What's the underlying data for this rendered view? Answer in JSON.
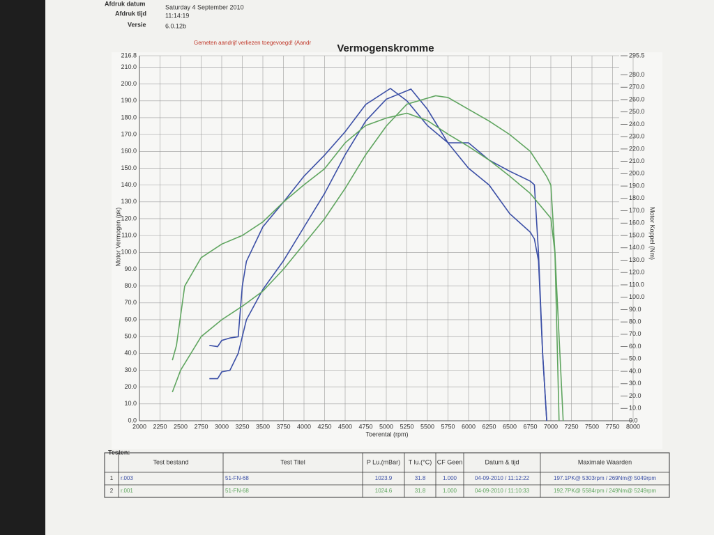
{
  "header": {
    "fields": [
      {
        "label": "Afdruk datum",
        "value": "Saturday 4 September 2010"
      },
      {
        "label": "Afdruk tijd",
        "value": "11:14:19"
      },
      {
        "label": "Versie",
        "value": "6.0.12b"
      }
    ]
  },
  "chart_data": {
    "type": "line",
    "title": "Vermogenskromme",
    "subtitle": "Gemeten aandrijf verliezen toegevoegd! (Aandr",
    "x_label": "Toerental (rpm)",
    "y_label": "Motor Vermogen (pk)",
    "y2_label": "Motor Koppel (Nm)",
    "xlim": [
      2000,
      8000
    ],
    "xticks": [
      2000,
      2250,
      2500,
      2750,
      3000,
      3250,
      3500,
      3750,
      4000,
      4250,
      4500,
      4750,
      5000,
      5250,
      5500,
      5750,
      6000,
      6250,
      6500,
      6750,
      7000,
      7250,
      7500,
      7750,
      8000
    ],
    "ylim": [
      0,
      216.8
    ],
    "yticks": [
      {
        "value": 0,
        "label": "0.0"
      },
      {
        "value": 10,
        "label": "10.0"
      },
      {
        "value": 20,
        "label": "20.0"
      },
      {
        "value": 30,
        "label": "30.0"
      },
      {
        "value": 40,
        "label": "40.0"
      },
      {
        "value": 50,
        "label": "50.0"
      },
      {
        "value": 60,
        "label": "60.0"
      },
      {
        "value": 70,
        "label": "70.0"
      },
      {
        "value": 80,
        "label": "80.0"
      },
      {
        "value": 90,
        "label": "90.0"
      },
      {
        "value": 100,
        "label": "100.0"
      },
      {
        "value": 110,
        "label": "110.0"
      },
      {
        "value": 120,
        "label": "120.0"
      },
      {
        "value": 130,
        "label": "130.0"
      },
      {
        "value": 140,
        "label": "140.0"
      },
      {
        "value": 150,
        "label": "150.0"
      },
      {
        "value": 160,
        "label": "160.0"
      },
      {
        "value": 170,
        "label": "170.0"
      },
      {
        "value": 180,
        "label": "180.0"
      },
      {
        "value": 190,
        "label": "190.0"
      },
      {
        "value": 200,
        "label": "200.0"
      },
      {
        "value": 210,
        "label": "210.0"
      },
      {
        "value": 216.8,
        "label": "216.8"
      }
    ],
    "y2lim": [
      0,
      295.5
    ],
    "y2ticks": [
      {
        "value": 0,
        "label": "0.0"
      },
      {
        "value": 10,
        "label": "10.0"
      },
      {
        "value": 20,
        "label": "20.0"
      },
      {
        "value": 30,
        "label": "30.0"
      },
      {
        "value": 40,
        "label": "40.0"
      },
      {
        "value": 50,
        "label": "50.0"
      },
      {
        "value": 60,
        "label": "60.0"
      },
      {
        "value": 70,
        "label": "70.0"
      },
      {
        "value": 80,
        "label": "80.0"
      },
      {
        "value": 90,
        "label": "90.0"
      },
      {
        "value": 100,
        "label": "100.0"
      },
      {
        "value": 110,
        "label": "110.0"
      },
      {
        "value": 120,
        "label": "120.0"
      },
      {
        "value": 130,
        "label": "130.0"
      },
      {
        "value": 140,
        "label": "140.0"
      },
      {
        "value": 150,
        "label": "150.0"
      },
      {
        "value": 160,
        "label": "160.0"
      },
      {
        "value": 170,
        "label": "170.0"
      },
      {
        "value": 180,
        "label": "180.0"
      },
      {
        "value": 190,
        "label": "190.0"
      },
      {
        "value": 200,
        "label": "200.0"
      },
      {
        "value": 210,
        "label": "210.0"
      },
      {
        "value": 220,
        "label": "220.0"
      },
      {
        "value": 230,
        "label": "230.0"
      },
      {
        "value": 240,
        "label": "240.0"
      },
      {
        "value": 250,
        "label": "250.0"
      },
      {
        "value": 260,
        "label": "260.0"
      },
      {
        "value": 270,
        "label": "270.0"
      },
      {
        "value": 280,
        "label": "280.0"
      },
      {
        "value": 295.5,
        "label": "295.5"
      }
    ],
    "grid": true,
    "series": [
      {
        "color": "#3b4fa6",
        "x": [
          2850,
          2950,
          3000,
          3100,
          3200,
          3300,
          3500,
          3750,
          4000,
          4250,
          4500,
          4750,
          5000,
          5300,
          5500,
          5750,
          6000,
          6250,
          6500,
          6750,
          6800,
          6850,
          6900,
          6950
        ],
        "values": [
          25,
          25,
          29,
          30,
          40,
          60,
          78,
          95,
          115,
          135,
          158,
          178,
          191,
          197,
          185,
          165,
          150,
          140,
          123,
          112,
          108,
          95,
          40,
          0
        ]
      },
      {
        "color": "#3b4fa6",
        "axis": "y2",
        "x": [
          2850,
          2950,
          3000,
          3100,
          3200,
          3250,
          3300,
          3500,
          3750,
          4000,
          4250,
          4500,
          4750,
          5050,
          5250,
          5500,
          5750,
          6000,
          6250,
          6500,
          6750,
          6800,
          6850,
          6900,
          6950
        ],
        "values": [
          61,
          60,
          65,
          67,
          68,
          109,
          129,
          157,
          177,
          198,
          215,
          234,
          256,
          269,
          259,
          239,
          225,
          225,
          211,
          202,
          194,
          191,
          136,
          55,
          0
        ]
      },
      {
        "color": "#5fa55f",
        "x": [
          2400,
          2500,
          2750,
          3000,
          3250,
          3500,
          3750,
          4000,
          4250,
          4500,
          4750,
          5000,
          5250,
          5600,
          5750,
          6000,
          6250,
          6500,
          6750,
          6950,
          7000,
          7050,
          7150
        ],
        "values": [
          17,
          30,
          50,
          60,
          68,
          77,
          90,
          105,
          120,
          138,
          158,
          175,
          188,
          193,
          192,
          185,
          178,
          170,
          160,
          145,
          140,
          100,
          0
        ]
      },
      {
        "color": "#5fa55f",
        "axis": "y2",
        "x": [
          2400,
          2450,
          2550,
          2750,
          3000,
          3250,
          3500,
          3750,
          4000,
          4250,
          4500,
          4750,
          5000,
          5250,
          5500,
          5750,
          6000,
          6250,
          6500,
          6750,
          7000,
          7050,
          7100
        ],
        "values": [
          49,
          61,
          109,
          132,
          143,
          150,
          161,
          177,
          191,
          204,
          225,
          239,
          245,
          249,
          243,
          232,
          222,
          211,
          198,
          184,
          164,
          136,
          0
        ]
      }
    ]
  },
  "table": {
    "caption": "Testen:",
    "columns": [
      "Test bestand",
      "Test Titel",
      "P Lu.(mBar)",
      "T lu.(°C)",
      "CF Geen",
      "Datum & tijd",
      "Maximale Waarden"
    ],
    "rows": [
      [
        "1",
        "r.003",
        "51-FN-68",
        "1023.9",
        "31.8",
        "1.000",
        "04-09-2010 / 11:12:22",
        "197.1PK@ 5303rpm / 269Nm@ 5049rpm"
      ],
      [
        "2",
        "r.001",
        "51-FN-68",
        "1024.6",
        "31.8",
        "1.000",
        "04-09-2010 / 11:10:33",
        "192.7PK@ 5584rpm / 249Nm@ 5249rpm"
      ]
    ]
  }
}
